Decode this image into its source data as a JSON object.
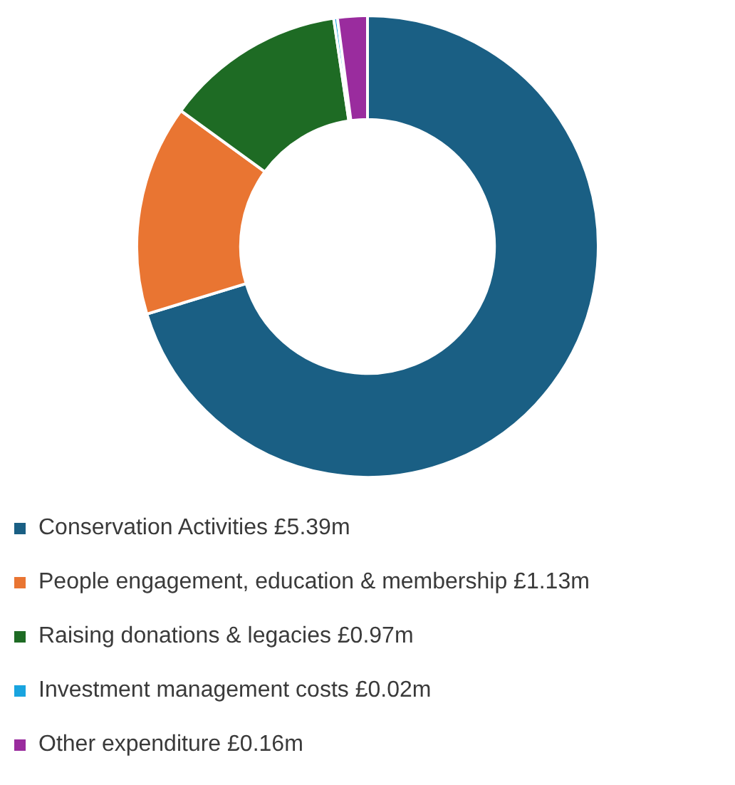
{
  "chart_data": {
    "type": "donut",
    "categories": [
      "Conservation Activities",
      "People engagement, education & membership",
      "Raising donations & legacies",
      "Investment management costs",
      "Other expenditure"
    ],
    "values": [
      5.39,
      1.13,
      0.97,
      0.02,
      0.16
    ],
    "value_labels": [
      "£5.39m",
      "£1.13m",
      "£0.97m",
      "£0.02m",
      "£0.16m"
    ],
    "colors": [
      "#1a5f84",
      "#e97532",
      "#1e6b24",
      "#19a4df",
      "#9a2c9e"
    ],
    "legend": "bottom"
  }
}
